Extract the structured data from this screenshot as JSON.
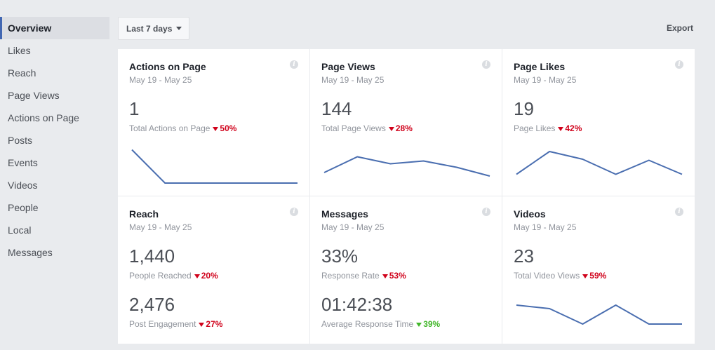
{
  "sidebar": {
    "items": [
      {
        "label": "Overview",
        "active": true
      },
      {
        "label": "Likes"
      },
      {
        "label": "Reach"
      },
      {
        "label": "Page Views"
      },
      {
        "label": "Actions on Page"
      },
      {
        "label": "Posts"
      },
      {
        "label": "Events"
      },
      {
        "label": "Videos"
      },
      {
        "label": "People"
      },
      {
        "label": "Local"
      },
      {
        "label": "Messages"
      }
    ]
  },
  "toolbar": {
    "range_label": "Last 7 days",
    "export_label": "Export"
  },
  "colors": {
    "accent": "#4267b2",
    "decrease": "#d0021b",
    "increase": "#42b72a",
    "sparkline": "#4a6eb0"
  },
  "cards": [
    {
      "title": "Actions on Page",
      "date": "May 19 - May 25",
      "info_icon": "i",
      "value": "1",
      "label": "Total Actions on Page",
      "delta": "50%",
      "delta_dir": "down"
    },
    {
      "title": "Page Views",
      "date": "May 19 - May 25",
      "info_icon": "i",
      "value": "144",
      "label": "Total Page Views",
      "delta": "28%",
      "delta_dir": "down"
    },
    {
      "title": "Page Likes",
      "date": "May 19 - May 25",
      "info_icon": "i",
      "value": "19",
      "label": "Page Likes",
      "delta": "42%",
      "delta_dir": "down"
    },
    {
      "title": "Reach",
      "date": "May 19 - May 25",
      "info_icon": "i",
      "value": "1,440",
      "label": "People Reached",
      "delta": "20%",
      "delta_dir": "down",
      "value2": "2,476",
      "label2": "Post Engagement",
      "delta2": "27%",
      "delta2_dir": "down"
    },
    {
      "title": "Messages",
      "date": "May 19 - May 25",
      "info_icon": "i",
      "value": "33%",
      "label": "Response Rate",
      "delta": "53%",
      "delta_dir": "down",
      "value2": "01:42:38",
      "label2": "Average Response Time",
      "delta2": "39%",
      "delta2_dir": "down-green"
    },
    {
      "title": "Videos",
      "date": "May 19 - May 25",
      "info_icon": "i",
      "value": "23",
      "label": "Total Video Views",
      "delta": "59%",
      "delta_dir": "down"
    }
  ],
  "sparklines": {
    "actions_on_page": [
      0.95,
      0.0,
      0.0,
      0.0,
      0.0,
      0.0
    ],
    "page_views": [
      0.3,
      0.75,
      0.55,
      0.63,
      0.45,
      0.2
    ],
    "page_likes": [
      0.25,
      0.9,
      0.68,
      0.25,
      0.65,
      0.25
    ],
    "videos": [
      0.72,
      0.62,
      0.18,
      0.72,
      0.18,
      0.18
    ]
  }
}
